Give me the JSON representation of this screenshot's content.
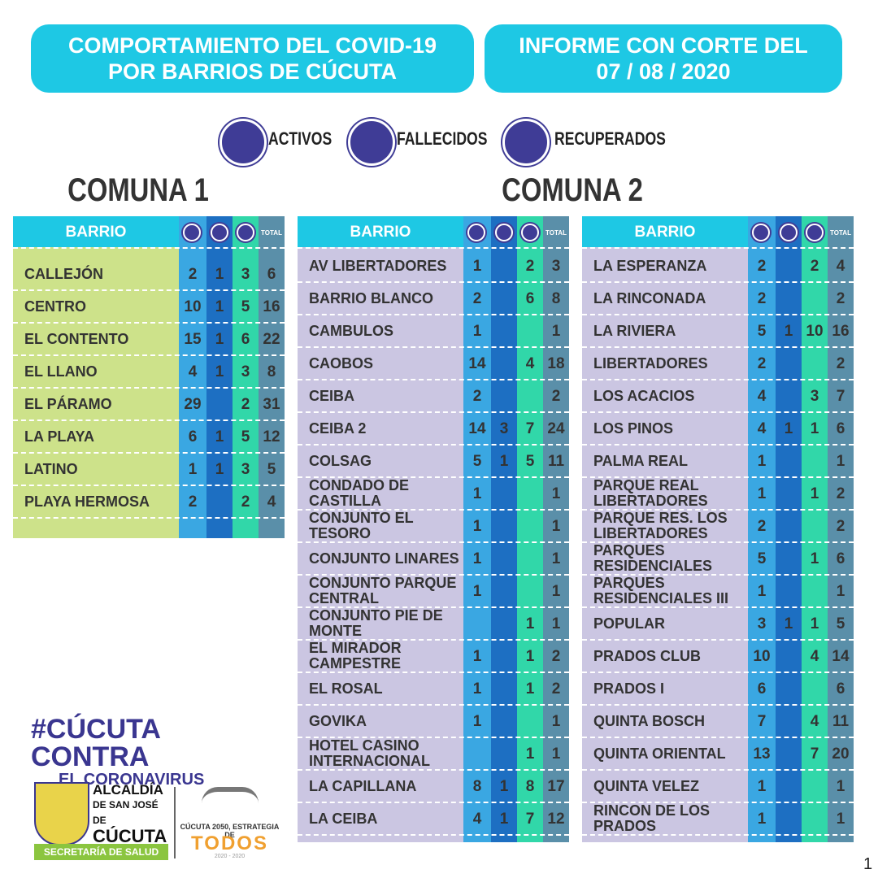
{
  "header": {
    "title": [
      "COMPORTAMIENTO DEL COVID-19",
      "POR BARRIOS DE CÚCUTA"
    ],
    "report": [
      "INFORME CON CORTE DEL",
      "07 / 08 / 2020"
    ]
  },
  "legend": [
    "ACTIVOS",
    "FALLECIDOS",
    "RECUPERADOS"
  ],
  "comunas": [
    {
      "title": "COMUNA 1",
      "tables": [
        {
          "header": {
            "barrio": "BARRIO",
            "total": "TOTAL"
          },
          "rows": [
            [
              "CALLEJÓN",
              2,
              1,
              3,
              6
            ],
            [
              "CENTRO",
              10,
              1,
              5,
              16
            ],
            [
              "EL CONTENTO",
              15,
              1,
              6,
              22
            ],
            [
              "EL LLANO",
              4,
              1,
              3,
              8
            ],
            [
              "EL PÁRAMO",
              29,
              null,
              2,
              31
            ],
            [
              "LA PLAYA",
              6,
              1,
              5,
              12
            ],
            [
              "LATINO",
              1,
              1,
              3,
              5
            ],
            [
              "PLAYA HERMOSA",
              2,
              null,
              2,
              4
            ]
          ]
        }
      ]
    },
    {
      "title": "COMUNA 2",
      "tables": [
        {
          "header": {
            "barrio": "BARRIO",
            "total": "TOTAL"
          },
          "rows": [
            [
              "AV LIBERTADORES",
              1,
              null,
              2,
              3
            ],
            [
              "BARRIO BLANCO",
              2,
              null,
              6,
              8
            ],
            [
              "CAMBULOS",
              1,
              null,
              null,
              1
            ],
            [
              "CAOBOS",
              14,
              null,
              4,
              18
            ],
            [
              "CEIBA",
              2,
              null,
              null,
              2
            ],
            [
              "CEIBA 2",
              14,
              3,
              7,
              24
            ],
            [
              "COLSAG",
              5,
              1,
              5,
              11
            ],
            [
              "CONDADO DE CASTILLA",
              1,
              null,
              null,
              1
            ],
            [
              "CONJUNTO EL TESORO",
              1,
              null,
              null,
              1
            ],
            [
              "CONJUNTO LINARES",
              1,
              null,
              null,
              1
            ],
            [
              "CONJUNTO PARQUE CENTRAL",
              1,
              null,
              null,
              1
            ],
            [
              "CONJUNTO PIE DE MONTE",
              null,
              null,
              1,
              1
            ],
            [
              "EL MIRADOR CAMPESTRE",
              1,
              null,
              1,
              2
            ],
            [
              "EL ROSAL",
              1,
              null,
              1,
              2
            ],
            [
              "GOVIKA",
              1,
              null,
              null,
              1
            ],
            [
              "HOTEL CASINO INTERNACIONAL",
              null,
              null,
              1,
              1
            ],
            [
              "LA CAPILLANA",
              8,
              1,
              8,
              17
            ],
            [
              "LA CEIBA",
              4,
              1,
              7,
              12
            ]
          ]
        },
        {
          "header": {
            "barrio": "BARRIO",
            "total": "TOTAL"
          },
          "rows": [
            [
              "LA ESPERANZA",
              2,
              null,
              2,
              4
            ],
            [
              "LA RINCONADA",
              2,
              null,
              null,
              2
            ],
            [
              "LA RIVIERA",
              5,
              1,
              10,
              16
            ],
            [
              "LIBERTADORES",
              2,
              null,
              null,
              2
            ],
            [
              "LOS ACACIOS",
              4,
              null,
              3,
              7
            ],
            [
              "LOS PINOS",
              4,
              1,
              1,
              6
            ],
            [
              "PALMA REAL",
              1,
              null,
              null,
              1
            ],
            [
              "PARQUE REAL LIBERTADORES",
              1,
              null,
              1,
              2
            ],
            [
              "PARQUE RES. LOS LIBERTADORES",
              2,
              null,
              null,
              2
            ],
            [
              "PARQUES RESIDENCIALES",
              5,
              null,
              1,
              6
            ],
            [
              "PARQUES RESIDENCIALES III",
              1,
              null,
              null,
              1
            ],
            [
              "POPULAR",
              3,
              1,
              1,
              5
            ],
            [
              "PRADOS CLUB",
              10,
              null,
              4,
              14
            ],
            [
              "PRADOS I",
              6,
              null,
              null,
              6
            ],
            [
              "QUINTA BOSCH",
              7,
              null,
              4,
              11
            ],
            [
              "QUINTA ORIENTAL",
              13,
              null,
              7,
              20
            ],
            [
              "QUINTA VELEZ",
              1,
              null,
              null,
              1
            ],
            [
              "RINCON DE LOS PRADOS",
              1,
              null,
              null,
              1
            ]
          ]
        }
      ]
    }
  ],
  "footer": {
    "hashtag": [
      "#CÚCUTA CONTRA",
      "EL CORONAVIRUS"
    ],
    "alcaldia": [
      "ALCALDÍA",
      "DE SAN JOSÉ DE",
      "CÚCUTA"
    ],
    "secretaria": "SECRETARÍA DE SALUD",
    "estrategia": "CÚCUTA 2050, ESTRATEGIA DE",
    "todos": "TODOS",
    "years": "2020 - 2020"
  },
  "page": 1
}
